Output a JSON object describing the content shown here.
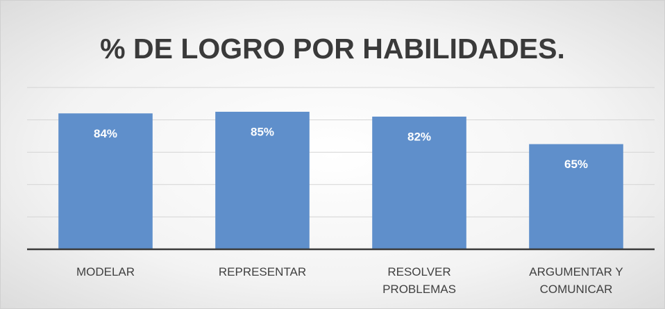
{
  "chart_data": {
    "type": "bar",
    "title": "% DE LOGRO POR HABILIDADES.",
    "categories": [
      "MODELAR",
      "REPRESENTAR",
      "RESOLVER PROBLEMAS",
      "ARGUMENTAR Y COMUNICAR"
    ],
    "values": [
      84,
      85,
      82,
      65
    ],
    "value_labels": [
      "84%",
      "85%",
      "82%",
      "65%"
    ],
    "color": "#5f8fcb",
    "ylim": [
      0,
      100
    ],
    "yticks": [
      0,
      20,
      40,
      60,
      80,
      100
    ],
    "grid": true
  }
}
